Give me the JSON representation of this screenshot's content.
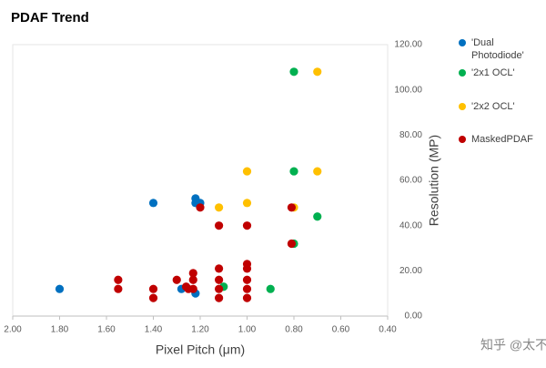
{
  "chart_data": {
    "type": "scatter",
    "title": "PDAF Trend",
    "x_label": "Pixel Pitch (μm)",
    "y_label": "Resolution (MP)",
    "watermark": "知乎 @太不巧",
    "xlim": [
      2.0,
      0.4
    ],
    "xticks": [
      {
        "value": 2.0,
        "label": "2.00"
      },
      {
        "value": 1.8,
        "label": "1.80"
      },
      {
        "value": 1.6,
        "label": "1.60"
      },
      {
        "value": 1.4,
        "label": "1.40"
      },
      {
        "value": 1.2,
        "label": "1.20"
      },
      {
        "value": 1.0,
        "label": "1.00"
      },
      {
        "value": 0.8,
        "label": "0.80"
      },
      {
        "value": 0.6,
        "label": "0.60"
      },
      {
        "value": 0.4,
        "label": "0.40"
      }
    ],
    "ylim": [
      0,
      120
    ],
    "yticks": [
      {
        "value": 0,
        "label": "0.00"
      },
      {
        "value": 20,
        "label": "20.00"
      },
      {
        "value": 40,
        "label": "40.00"
      },
      {
        "value": 60,
        "label": "60.00"
      },
      {
        "value": 80,
        "label": "80.00"
      },
      {
        "value": 100,
        "label": "100.00"
      },
      {
        "value": 120,
        "label": "120.00"
      }
    ],
    "y_axis_side": "right",
    "grid": false,
    "series": [
      {
        "name": "'Dual Photodiode'",
        "color": "#0070c0",
        "x": [
          1.8,
          1.4,
          1.22,
          1.22,
          1.2,
          1.28,
          1.22
        ],
        "values": [
          12,
          50,
          52,
          50,
          50,
          12,
          10
        ]
      },
      {
        "name": "'2x1 OCL'",
        "color": "#00b050",
        "x": [
          0.8,
          0.8,
          0.7,
          0.8,
          0.9,
          1.1
        ],
        "values": [
          108,
          64,
          44,
          32,
          12,
          13
        ]
      },
      {
        "name": "'2x2 OCL'",
        "color": "#ffc000",
        "x": [
          0.7,
          1.0,
          0.7,
          1.0,
          1.12,
          0.8
        ],
        "values": [
          108,
          64,
          64,
          50,
          48,
          48
        ]
      },
      {
        "name": "MaskedPDAF",
        "color": "#c00000",
        "x": [
          1.55,
          1.55,
          1.4,
          1.4,
          1.3,
          1.25,
          1.26,
          1.23,
          1.23,
          1.23,
          1.2,
          1.12,
          1.12,
          1.12,
          1.12,
          1.12,
          1.0,
          1.0,
          1.0,
          1.0,
          1.0,
          1.0,
          0.81,
          0.81
        ],
        "values": [
          16,
          12,
          12,
          8,
          16,
          12,
          13,
          19,
          16,
          12,
          48,
          40,
          21,
          16,
          12,
          8,
          40,
          23,
          21,
          16,
          12,
          8,
          48,
          32
        ]
      }
    ]
  }
}
